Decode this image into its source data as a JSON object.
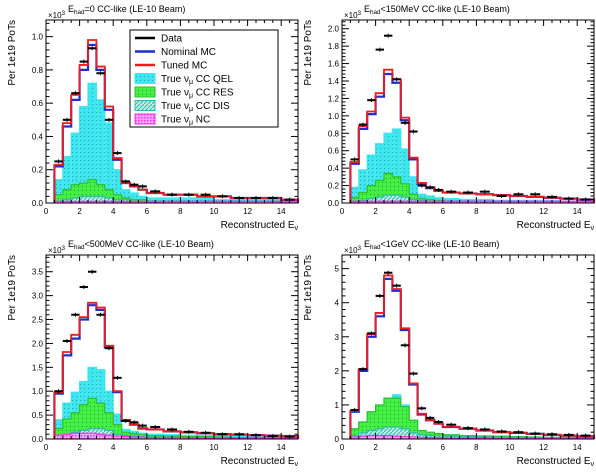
{
  "colors": {
    "data": "#000000",
    "nominal": "#1f2fcf",
    "tuned": "#ee1c1c",
    "qel_fill": "#3fe6ee",
    "res_fill": "#44ee44",
    "res_line": "#2fbf2f",
    "dis_fill": "#2bbfa8",
    "nc_fill": "#ee33ee"
  },
  "legend": {
    "entries": [
      {
        "id": "data",
        "label": "Data"
      },
      {
        "id": "nominal",
        "label": "Nominal MC"
      },
      {
        "id": "tuned",
        "label": "Tuned MC"
      },
      {
        "id": "qel",
        "label_pre": "True ν",
        "label_sub": "μ",
        "label_post": " CC QEL"
      },
      {
        "id": "res",
        "label_pre": "True ν",
        "label_sub": "μ",
        "label_post": " CC RES"
      },
      {
        "id": "dis",
        "label_pre": "True ν",
        "label_sub": "μ",
        "label_post": " CC DIS"
      },
      {
        "id": "nc",
        "label_pre": "True ν",
        "label_sub": "μ",
        "label_post": " NC"
      }
    ]
  },
  "chart_data": [
    {
      "type": "bar",
      "title_pre": "E",
      "title_sub": "had",
      "title_post": "=0 CC-like (LE-10 Beam)",
      "ylabel": "Per 1e19 PoTs",
      "xlabel_pre": "Reconstructed E",
      "xlabel_sub": "ν",
      "y_multiplier_base": "×10",
      "y_multiplier_exp": "3",
      "xlim": [
        0,
        15
      ],
      "ylim": [
        0,
        1.1
      ],
      "x_ticks": [
        0,
        2,
        4,
        6,
        8,
        10,
        12,
        14
      ],
      "y_ticks": [
        0,
        0.2,
        0.4,
        0.6,
        0.8,
        1.0
      ],
      "y_tick_labels": [
        "0.0",
        "0.2",
        "0.4",
        "0.6",
        "0.8",
        "1.0"
      ],
      "bin_edges": [
        0.5,
        1,
        1.5,
        2,
        2.5,
        3,
        3.5,
        4,
        4.5,
        5,
        5.5,
        6,
        7,
        8,
        9,
        10,
        11,
        12,
        13,
        14,
        15
      ],
      "series": [
        {
          "name": "True νμ CC QEL",
          "values": [
            0.14,
            0.28,
            0.42,
            0.58,
            0.72,
            0.62,
            0.48,
            0.2,
            0.08,
            0.06,
            0.04,
            0.03,
            0.03,
            0.03,
            0.03,
            0.02,
            0.02,
            0.02,
            0.02,
            0.02
          ]
        },
        {
          "name": "True νμ CC RES",
          "values": [
            0.05,
            0.08,
            0.11,
            0.12,
            0.14,
            0.11,
            0.08,
            0.05,
            0.03,
            0.02,
            0.02,
            0.01,
            0.01,
            0.01,
            0.01,
            0.01,
            0.01,
            0.01,
            0.01,
            0.01
          ]
        },
        {
          "name": "True νμ CC DIS",
          "values": [
            0.01,
            0.02,
            0.03,
            0.04,
            0.04,
            0.04,
            0.03,
            0.02,
            0.02,
            0.01,
            0.01,
            0.01,
            0.01,
            0.01,
            0.01,
            0.01,
            0.01,
            0.01,
            0.01,
            0.01
          ]
        },
        {
          "name": "True νμ NC",
          "values": [
            0.01,
            0.01,
            0.01,
            0.01,
            0.01,
            0.01,
            0.01,
            0.01,
            0.01,
            0.01,
            0.01,
            0.01,
            0.01,
            0.01,
            0.01,
            0.01,
            0.01,
            0.01,
            0.01,
            0.01
          ]
        },
        {
          "name": "Nominal MC",
          "values": [
            0.22,
            0.46,
            0.62,
            0.8,
            0.95,
            0.8,
            0.56,
            0.26,
            0.12,
            0.1,
            0.08,
            0.06,
            0.05,
            0.05,
            0.04,
            0.04,
            0.03,
            0.03,
            0.03,
            0.02
          ]
        },
        {
          "name": "Tuned MC",
          "values": [
            0.23,
            0.48,
            0.65,
            0.83,
            0.98,
            0.82,
            0.58,
            0.27,
            0.12,
            0.1,
            0.08,
            0.06,
            0.05,
            0.05,
            0.04,
            0.04,
            0.03,
            0.03,
            0.03,
            0.02
          ]
        },
        {
          "name": "Data",
          "values": [
            0.25,
            0.5,
            0.66,
            0.85,
            0.93,
            0.78,
            0.5,
            0.3,
            0.13,
            0.11,
            0.1,
            0.07,
            0.05,
            0.05,
            0.05,
            0.04,
            0.03,
            0.03,
            0.03,
            0.02
          ]
        }
      ]
    },
    {
      "type": "bar",
      "title_pre": "E",
      "title_sub": "had",
      "title_post": "<150MeV CC-like (LE-10 Beam)",
      "ylabel": "Per 1e19 PoTs",
      "xlabel_pre": "Reconstructed E",
      "xlabel_sub": "ν",
      "y_multiplier_base": "×10",
      "y_multiplier_exp": "3",
      "xlim": [
        0,
        15
      ],
      "ylim": [
        0,
        2.1
      ],
      "x_ticks": [
        0,
        2,
        4,
        6,
        8,
        10,
        12,
        14
      ],
      "y_ticks": [
        0,
        0.2,
        0.4,
        0.6,
        0.8,
        1.0,
        1.2,
        1.4,
        1.6,
        1.8,
        2.0
      ],
      "y_tick_labels": [
        "0.0",
        "0.2",
        "0.4",
        "0.6",
        "0.8",
        "1.0",
        "1.2",
        "1.4",
        "1.6",
        "1.8",
        "2.0"
      ],
      "bin_edges": [
        0.5,
        1,
        1.5,
        2,
        2.5,
        3,
        3.5,
        4,
        4.5,
        5,
        5.5,
        6,
        7,
        8,
        9,
        10,
        11,
        12,
        13,
        14,
        15
      ],
      "series": [
        {
          "name": "True νμ CC QEL",
          "values": [
            0.18,
            0.38,
            0.55,
            0.68,
            0.8,
            0.85,
            0.62,
            0.3,
            0.1,
            0.08,
            0.06,
            0.05,
            0.04,
            0.04,
            0.03,
            0.03,
            0.03,
            0.03,
            0.02,
            0.02
          ]
        },
        {
          "name": "True νμ CC RES",
          "values": [
            0.06,
            0.12,
            0.2,
            0.26,
            0.34,
            0.3,
            0.22,
            0.1,
            0.05,
            0.04,
            0.03,
            0.02,
            0.02,
            0.02,
            0.02,
            0.01,
            0.01,
            0.01,
            0.01,
            0.01
          ]
        },
        {
          "name": "True νμ CC DIS",
          "values": [
            0.02,
            0.03,
            0.05,
            0.07,
            0.09,
            0.09,
            0.07,
            0.04,
            0.03,
            0.02,
            0.02,
            0.02,
            0.02,
            0.02,
            0.02,
            0.01,
            0.01,
            0.01,
            0.01,
            0.01
          ]
        },
        {
          "name": "True νμ NC",
          "values": [
            0.02,
            0.02,
            0.02,
            0.02,
            0.02,
            0.02,
            0.02,
            0.02,
            0.02,
            0.02,
            0.02,
            0.02,
            0.02,
            0.02,
            0.02,
            0.02,
            0.02,
            0.02,
            0.02,
            0.02
          ]
        },
        {
          "name": "Nominal MC",
          "values": [
            0.45,
            0.85,
            1.02,
            1.22,
            1.48,
            1.38,
            0.95,
            0.5,
            0.22,
            0.17,
            0.14,
            0.12,
            0.11,
            0.1,
            0.09,
            0.08,
            0.07,
            0.06,
            0.05,
            0.04
          ]
        },
        {
          "name": "Tuned MC",
          "values": [
            0.47,
            0.88,
            1.05,
            1.26,
            1.53,
            1.42,
            0.98,
            0.52,
            0.23,
            0.18,
            0.14,
            0.12,
            0.11,
            0.1,
            0.09,
            0.08,
            0.07,
            0.06,
            0.05,
            0.04
          ]
        },
        {
          "name": "Data",
          "values": [
            0.5,
            0.9,
            1.18,
            1.76,
            1.92,
            1.42,
            0.92,
            0.82,
            0.2,
            0.18,
            0.15,
            0.13,
            0.12,
            0.13,
            0.08,
            0.1,
            0.1,
            0.07,
            0.05,
            0.04
          ]
        }
      ]
    },
    {
      "type": "bar",
      "title_pre": "E",
      "title_sub": "had",
      "title_post": "<500MeV CC-like (LE-10 Beam)",
      "ylabel": "Per 1e19 PoTs",
      "xlabel_pre": "Reconstructed E",
      "xlabel_sub": "ν",
      "y_multiplier_base": "×10",
      "y_multiplier_exp": "3",
      "xlim": [
        0,
        15
      ],
      "ylim": [
        0,
        3.85
      ],
      "x_ticks": [
        0,
        2,
        4,
        6,
        8,
        10,
        12,
        14
      ],
      "y_ticks": [
        0,
        0.5,
        1.0,
        1.5,
        2.0,
        2.5,
        3.0,
        3.5
      ],
      "y_tick_labels": [
        "0.0",
        "0.5",
        "1.0",
        "1.5",
        "2.0",
        "2.5",
        "3.0",
        "3.5"
      ],
      "bin_edges": [
        0.5,
        1,
        1.5,
        2,
        2.5,
        3,
        3.5,
        4,
        4.5,
        5,
        5.5,
        6,
        7,
        8,
        9,
        10,
        11,
        12,
        13,
        14,
        15
      ],
      "series": [
        {
          "name": "True νμ CC QEL",
          "values": [
            0.4,
            0.75,
            0.98,
            1.2,
            1.5,
            1.45,
            1.0,
            0.52,
            0.2,
            0.16,
            0.12,
            0.1,
            0.09,
            0.08,
            0.07,
            0.06,
            0.05,
            0.04,
            0.04,
            0.03
          ]
        },
        {
          "name": "True νμ CC RES",
          "values": [
            0.22,
            0.42,
            0.55,
            0.72,
            0.85,
            0.75,
            0.55,
            0.3,
            0.14,
            0.11,
            0.09,
            0.07,
            0.06,
            0.05,
            0.05,
            0.04,
            0.03,
            0.03,
            0.03,
            0.02
          ]
        },
        {
          "name": "True νμ CC DIS",
          "values": [
            0.06,
            0.1,
            0.14,
            0.18,
            0.22,
            0.22,
            0.18,
            0.1,
            0.07,
            0.06,
            0.05,
            0.04,
            0.04,
            0.03,
            0.03,
            0.03,
            0.02,
            0.02,
            0.02,
            0.02
          ]
        },
        {
          "name": "True νμ NC",
          "values": [
            0.08,
            0.1,
            0.12,
            0.12,
            0.12,
            0.1,
            0.08,
            0.06,
            0.05,
            0.04,
            0.04,
            0.03,
            0.03,
            0.03,
            0.02,
            0.02,
            0.02,
            0.02,
            0.02,
            0.02
          ]
        },
        {
          "name": "Nominal MC",
          "values": [
            0.95,
            1.75,
            2.1,
            2.5,
            2.8,
            2.7,
            1.92,
            0.98,
            0.38,
            0.3,
            0.22,
            0.2,
            0.16,
            0.14,
            0.12,
            0.1,
            0.09,
            0.08,
            0.07,
            0.06
          ]
        },
        {
          "name": "Tuned MC",
          "values": [
            0.98,
            1.82,
            2.18,
            2.55,
            2.85,
            2.75,
            1.95,
            1.0,
            0.4,
            0.31,
            0.23,
            0.2,
            0.16,
            0.14,
            0.12,
            0.1,
            0.09,
            0.08,
            0.07,
            0.06
          ]
        },
        {
          "name": "Data",
          "values": [
            1.0,
            2.05,
            2.6,
            3.18,
            3.5,
            2.6,
            1.9,
            1.28,
            0.38,
            0.35,
            0.28,
            0.25,
            0.2,
            0.15,
            0.13,
            0.1,
            0.1,
            0.08,
            0.06,
            0.05
          ]
        }
      ]
    },
    {
      "type": "bar",
      "title_pre": "E",
      "title_sub": "had",
      "title_post": "<1GeV CC-like (LE-10 Beam)",
      "ylabel": "Per 1e19 PoTs",
      "xlabel_pre": "Reconstructed E",
      "xlabel_sub": "ν",
      "y_multiplier_base": "×10",
      "y_multiplier_exp": "3",
      "xlim": [
        0,
        15
      ],
      "ylim": [
        0,
        5.4
      ],
      "x_ticks": [
        0,
        2,
        4,
        6,
        8,
        10,
        12,
        14
      ],
      "y_ticks": [
        0,
        1,
        2,
        3,
        4,
        5
      ],
      "y_tick_labels": [
        "0",
        "1",
        "2",
        "3",
        "4",
        "5"
      ],
      "bin_edges": [
        0.5,
        1,
        1.5,
        2,
        2.5,
        3,
        3.5,
        4,
        4.5,
        5,
        5.5,
        6,
        7,
        8,
        9,
        10,
        11,
        12,
        13,
        14,
        15
      ],
      "series": [
        {
          "name": "True νμ CC QEL",
          "values": [
            0.25,
            0.48,
            0.75,
            1.0,
            1.2,
            1.3,
            1.0,
            0.55,
            0.22,
            0.18,
            0.15,
            0.12,
            0.1,
            0.09,
            0.08,
            0.07,
            0.06,
            0.05,
            0.05,
            0.04
          ]
        },
        {
          "name": "True νμ CC RES",
          "values": [
            0.3,
            0.5,
            0.8,
            1.0,
            1.2,
            1.2,
            0.95,
            0.55,
            0.25,
            0.2,
            0.16,
            0.12,
            0.1,
            0.09,
            0.08,
            0.07,
            0.06,
            0.05,
            0.05,
            0.04
          ]
        },
        {
          "name": "True νμ CC DIS",
          "values": [
            0.1,
            0.18,
            0.25,
            0.3,
            0.35,
            0.35,
            0.3,
            0.18,
            0.12,
            0.1,
            0.09,
            0.08,
            0.07,
            0.06,
            0.05,
            0.05,
            0.04,
            0.04,
            0.03,
            0.03
          ]
        },
        {
          "name": "True νμ NC",
          "values": [
            0.06,
            0.08,
            0.1,
            0.1,
            0.1,
            0.08,
            0.07,
            0.06,
            0.05,
            0.04,
            0.04,
            0.03,
            0.03,
            0.03,
            0.02,
            0.02,
            0.02,
            0.02,
            0.02,
            0.02
          ]
        },
        {
          "name": "Nominal MC",
          "values": [
            0.8,
            2.0,
            3.0,
            3.6,
            4.7,
            4.35,
            3.2,
            1.6,
            0.72,
            0.55,
            0.45,
            0.35,
            0.3,
            0.25,
            0.2,
            0.18,
            0.15,
            0.12,
            0.1,
            0.08
          ]
        },
        {
          "name": "Tuned MC",
          "values": [
            0.82,
            2.05,
            3.08,
            3.7,
            4.8,
            4.4,
            3.25,
            1.63,
            0.74,
            0.56,
            0.45,
            0.36,
            0.3,
            0.25,
            0.2,
            0.18,
            0.15,
            0.12,
            0.1,
            0.08
          ]
        },
        {
          "name": "Data",
          "values": [
            0.85,
            2.05,
            3.1,
            4.2,
            4.88,
            4.5,
            2.75,
            1.92,
            0.9,
            0.62,
            0.5,
            0.42,
            0.32,
            0.28,
            0.22,
            0.2,
            0.16,
            0.14,
            0.12,
            0.1
          ]
        }
      ]
    }
  ]
}
